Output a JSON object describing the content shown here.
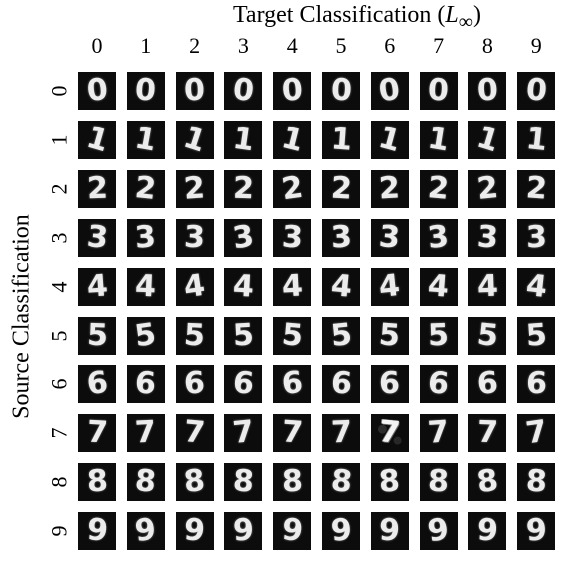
{
  "figure": {
    "title_prefix": "Target Classification (",
    "title_math": "L",
    "title_subscript": "∞",
    "title_suffix": ")",
    "ylabel": "Source Classification",
    "target_labels": [
      "0",
      "1",
      "2",
      "3",
      "4",
      "5",
      "6",
      "7",
      "8",
      "9"
    ],
    "source_labels": [
      "0",
      "1",
      "2",
      "3",
      "4",
      "5",
      "6",
      "7",
      "8",
      "9"
    ],
    "cell_background": "#0c0c0c",
    "digit_color": "#ececec"
  }
}
